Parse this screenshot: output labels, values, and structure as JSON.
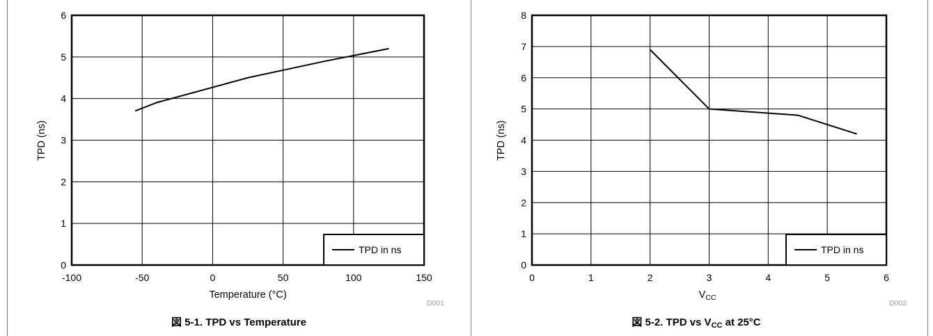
{
  "charts": [
    {
      "type": "line",
      "xlabel": "Temperature (°C)",
      "ylabel": "TPD (ns)",
      "xlim": [
        -100,
        150
      ],
      "ylim": [
        0,
        6
      ],
      "xticks": [
        "-100",
        "-50",
        "0",
        "50",
        "100",
        "150"
      ],
      "yticks": [
        "0",
        "1",
        "2",
        "3",
        "4",
        "5",
        "6"
      ],
      "series": [
        {
          "name": "TPD in ns",
          "x": [
            -55,
            -40,
            25,
            80,
            125
          ],
          "y": [
            3.7,
            3.9,
            4.5,
            4.9,
            5.2
          ]
        }
      ],
      "legend": "bottom-right",
      "grid": true,
      "code": "D001",
      "caption": "図 5-1. TPD vs Temperature"
    },
    {
      "type": "line",
      "xlabel": "V",
      "xlabel_sub": "CC",
      "ylabel": "TPD (ns)",
      "xlim": [
        0,
        6
      ],
      "ylim": [
        0,
        8
      ],
      "xticks": [
        "0",
        "1",
        "2",
        "3",
        "4",
        "5",
        "6"
      ],
      "yticks": [
        "0",
        "1",
        "2",
        "3",
        "4",
        "5",
        "6",
        "7",
        "8"
      ],
      "series": [
        {
          "name": "TPD in ns",
          "x": [
            2,
            3,
            4.5,
            5.5
          ],
          "y": [
            6.9,
            5.0,
            4.8,
            4.2
          ]
        }
      ],
      "legend": "bottom-right",
      "grid": true,
      "code": "D002",
      "caption_prefix": "図 5-2. TPD vs V",
      "caption_sub": "CC",
      "caption_suffix": " at 25°C"
    }
  ]
}
